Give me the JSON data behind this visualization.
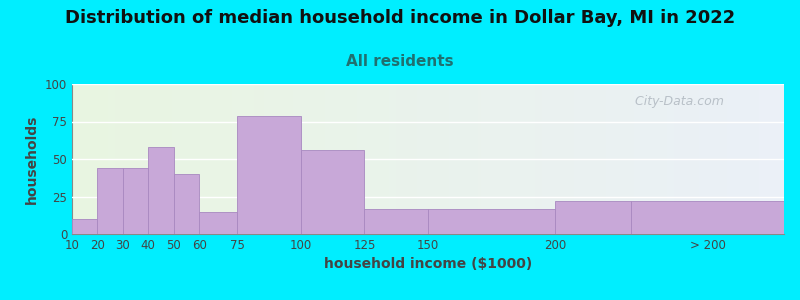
{
  "title": "Distribution of median household income in Dollar Bay, MI in 2022",
  "subtitle": "All residents",
  "xlabel": "household income ($1000)",
  "ylabel": "households",
  "bar_heights": [
    10,
    44,
    44,
    58,
    40,
    15,
    79,
    56,
    17,
    17,
    22,
    22
  ],
  "bar_color": "#c8a8d8",
  "bar_edge_color": "#a888c0",
  "bg_color": "#00eeff",
  "ylim": [
    0,
    100
  ],
  "yticks": [
    0,
    25,
    50,
    75,
    100
  ],
  "title_fontsize": 13,
  "subtitle_fontsize": 11,
  "subtitle_color": "#207070",
  "axis_label_fontsize": 10,
  "title_color": "#111111",
  "tick_label_color": "#444444",
  "watermark_text": "  City-Data.com",
  "watermark_color": "#b0b8c0"
}
